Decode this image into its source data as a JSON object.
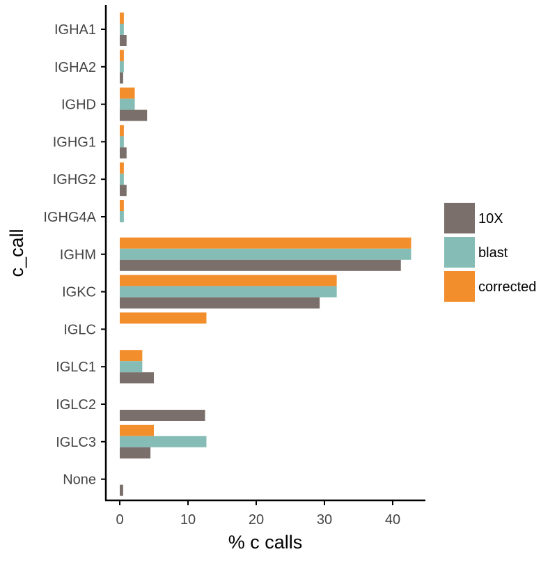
{
  "chart_data": {
    "type": "bar",
    "orientation": "horizontal",
    "xlabel": "% c calls",
    "ylabel": "c_call",
    "xlim": [
      -2,
      45
    ],
    "xticks": [
      0,
      10,
      20,
      30,
      40
    ],
    "categories": [
      "IGHA1",
      "IGHA2",
      "IGHD",
      "IGHG1",
      "IGHG2",
      "IGHG4A",
      "IGHM",
      "IGKC",
      "IGLC",
      "IGLC1",
      "IGLC2",
      "IGLC3",
      "None"
    ],
    "series": [
      {
        "name": "10X",
        "color": "#7a6f6b",
        "values": [
          1.0,
          0.5,
          4.0,
          1.0,
          1.0,
          0,
          41.2,
          29.3,
          0,
          5.0,
          12.5,
          4.5,
          0.5
        ]
      },
      {
        "name": "blast",
        "color": "#85bdb6",
        "values": [
          0.6,
          0.6,
          2.2,
          0.6,
          0.6,
          0.6,
          42.7,
          31.8,
          0,
          3.3,
          0,
          12.7,
          0
        ]
      },
      {
        "name": "corrected",
        "color": "#f28e2b",
        "values": [
          0.6,
          0.6,
          2.2,
          0.6,
          0.6,
          0.6,
          42.7,
          31.8,
          12.7,
          3.3,
          0,
          5.0,
          0
        ]
      }
    ],
    "legend": {
      "position": "right",
      "items": [
        "10X",
        "blast",
        "corrected"
      ]
    },
    "grid": false
  }
}
